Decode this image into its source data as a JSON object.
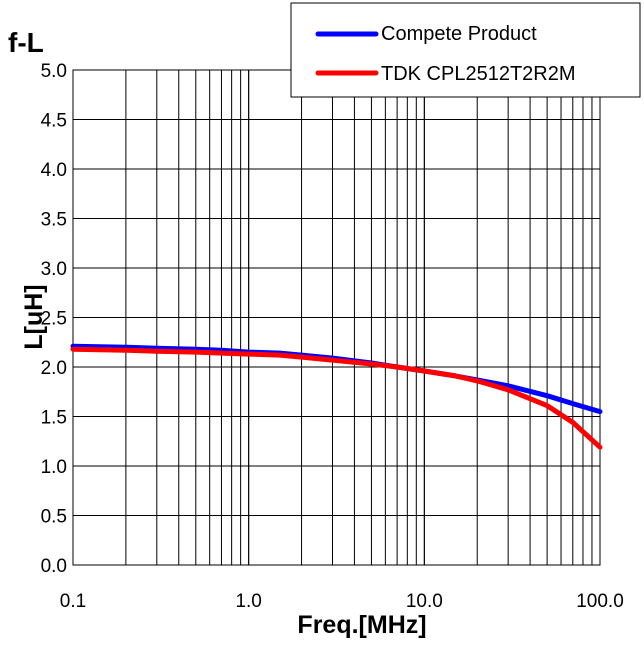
{
  "chart_data": {
    "type": "line",
    "title": "f-L",
    "xlabel": "Freq.[MHz]",
    "ylabel": "L[uH]",
    "x_scale": "log",
    "xlim": [
      0.1,
      100
    ],
    "ylim": [
      0,
      5
    ],
    "x_ticks": [
      "0.1",
      "1.0",
      "10.0",
      "100.0"
    ],
    "y_ticks": [
      "0.0",
      "0.5",
      "1.0",
      "1.5",
      "2.0",
      "2.5",
      "3.0",
      "3.5",
      "4.0",
      "4.5",
      "5.0"
    ],
    "grid": true,
    "legend_position": "top-right",
    "series": [
      {
        "name": "Compete Product",
        "color": "#0000ff",
        "x": [
          0.1,
          0.2,
          0.3,
          0.5,
          0.7,
          1.0,
          1.5,
          2,
          3,
          5,
          7,
          10,
          15,
          20,
          30,
          50,
          70,
          100
        ],
        "y": [
          2.21,
          2.2,
          2.19,
          2.18,
          2.17,
          2.15,
          2.14,
          2.12,
          2.09,
          2.04,
          2.0,
          1.96,
          1.91,
          1.87,
          1.81,
          1.71,
          1.63,
          1.55
        ]
      },
      {
        "name": "TDK CPL2512T2R2M",
        "color": "#ff0000",
        "x": [
          0.1,
          0.2,
          0.3,
          0.5,
          0.7,
          1.0,
          1.5,
          2,
          3,
          5,
          7,
          10,
          15,
          20,
          30,
          50,
          70,
          100
        ],
        "y": [
          2.18,
          2.17,
          2.16,
          2.15,
          2.14,
          2.13,
          2.12,
          2.1,
          2.07,
          2.03,
          2.0,
          1.96,
          1.91,
          1.86,
          1.77,
          1.61,
          1.44,
          1.19
        ]
      }
    ]
  }
}
